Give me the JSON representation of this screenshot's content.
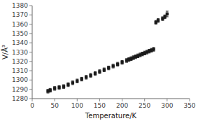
{
  "chart_data": {
    "type": "scatter",
    "xlabel": "Temperature/K",
    "ylabel": "V/Å³",
    "x": [
      35,
      40,
      50,
      60,
      70,
      80,
      90,
      100,
      110,
      120,
      130,
      140,
      150,
      160,
      170,
      180,
      190,
      200,
      210,
      215,
      220,
      225,
      230,
      235,
      240,
      245,
      250,
      255,
      260,
      265,
      270,
      275,
      280,
      290,
      295,
      300
    ],
    "values": [
      1288,
      1289,
      1291,
      1292,
      1293,
      1295,
      1297,
      1299,
      1301,
      1303,
      1305,
      1307,
      1309,
      1311,
      1313,
      1315,
      1317,
      1319,
      1321,
      1322,
      1323,
      1324,
      1325,
      1326,
      1327,
      1328,
      1329,
      1330,
      1331,
      1332,
      1333,
      1362,
      1364,
      1366,
      1368,
      1371
    ],
    "yerr": [
      2,
      2,
      2,
      2,
      2,
      2,
      2,
      2,
      2,
      2,
      2,
      2,
      2,
      2,
      2,
      2,
      2,
      2,
      2,
      2,
      2,
      2,
      2,
      2,
      2,
      2,
      2,
      2,
      2,
      2,
      2,
      2,
      2,
      2,
      2,
      3
    ],
    "xlim": [
      0,
      350
    ],
    "ylim": [
      1280,
      1380
    ],
    "xticks": [
      0,
      50,
      100,
      150,
      200,
      250,
      300,
      350
    ],
    "yticks": [
      1280,
      1290,
      1300,
      1310,
      1320,
      1330,
      1340,
      1350,
      1360,
      1370,
      1380
    ],
    "marker": "square",
    "color": "#1a1a1a"
  }
}
